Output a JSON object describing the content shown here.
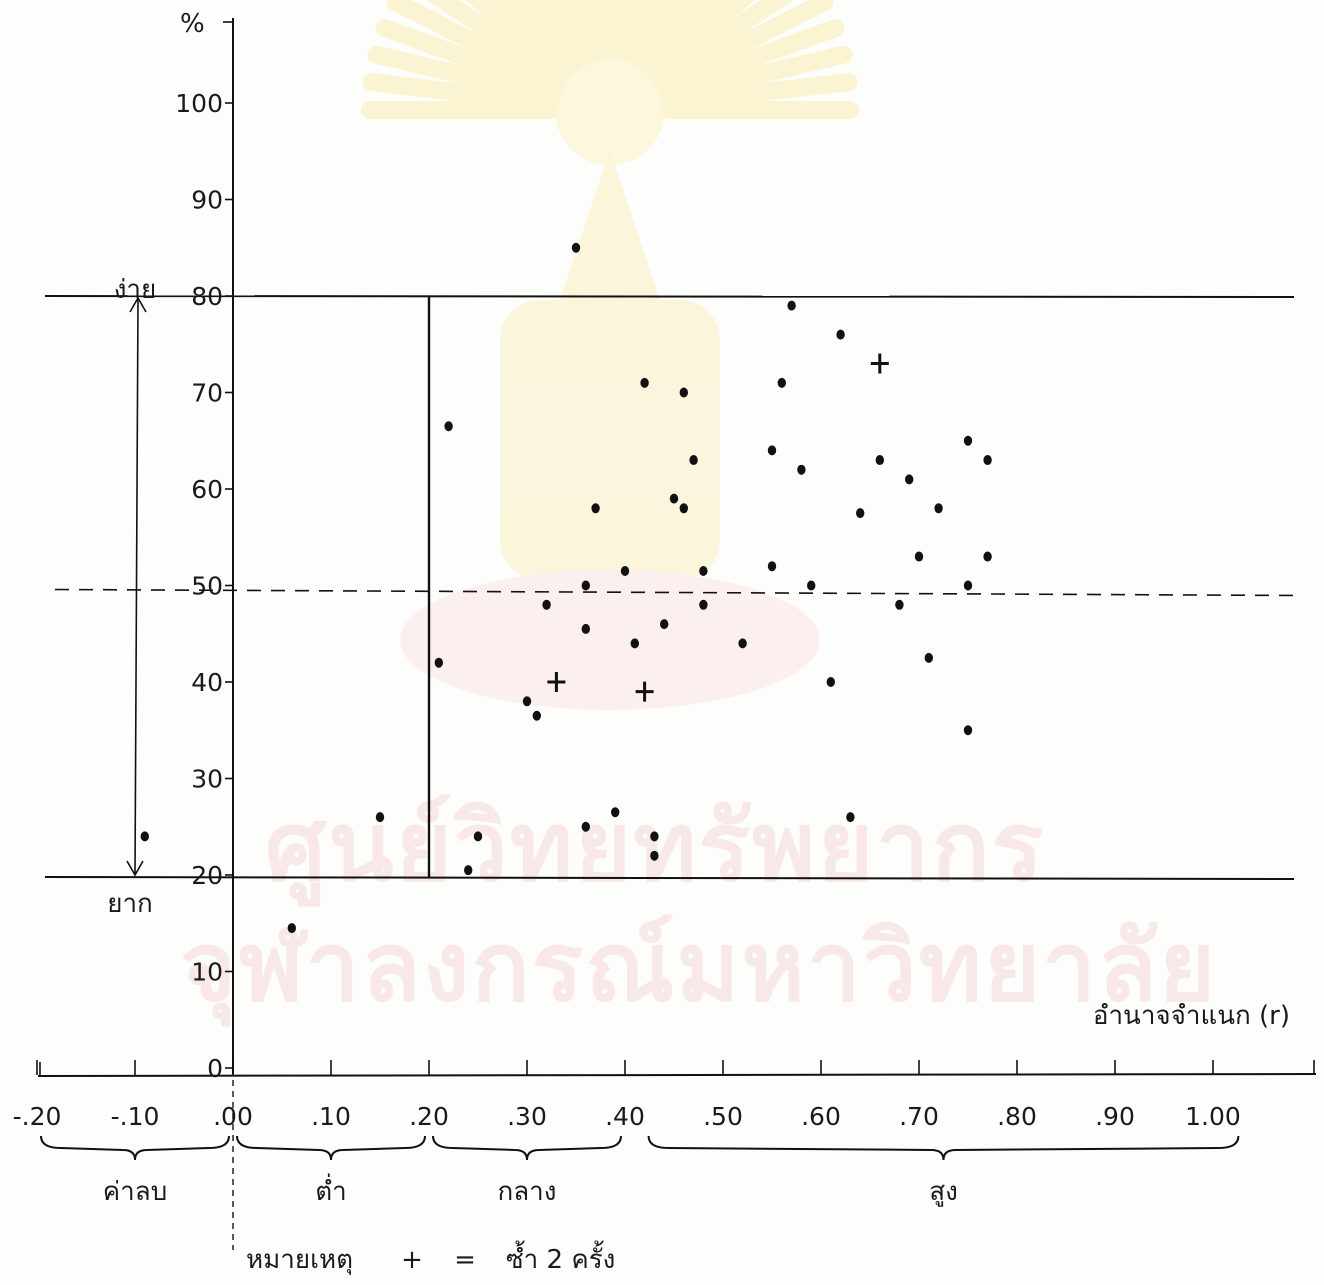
{
  "chart_data": {
    "type": "scatter",
    "y_unit_label": "%",
    "x_axis_label": "อำนาจจำแนก (r)",
    "x_ticks": [
      "-.20",
      "-.10",
      ".00",
      ".10",
      ".20",
      ".30",
      ".40",
      ".50",
      ".60",
      ".70",
      ".80",
      ".90",
      "1.00"
    ],
    "x_tick_values": [
      -0.2,
      -0.1,
      0.0,
      0.1,
      0.2,
      0.3,
      0.4,
      0.5,
      0.6,
      0.7,
      0.8,
      0.9,
      1.0
    ],
    "y_ticks": [
      "0",
      "10",
      "20",
      "30",
      "40",
      "50",
      "60",
      "70",
      "80",
      "90",
      "100"
    ],
    "y_tick_values": [
      0,
      10,
      20,
      30,
      40,
      50,
      60,
      70,
      80,
      90,
      100
    ],
    "xlim": [
      -0.2,
      1.1
    ],
    "ylim": [
      0,
      105
    ],
    "easy_label": "ง่าย",
    "hard_label": "ยาก",
    "reference_lines": {
      "easy_level": 80,
      "hard_level": 20,
      "mid_level": 50,
      "min_discrimination": 0.2
    },
    "groups": [
      {
        "label": "ค่าลบ",
        "from": -0.2,
        "to": 0.0
      },
      {
        "label": "ต่ำ",
        "from": 0.0,
        "to": 0.2
      },
      {
        "label": "กลาง",
        "from": 0.2,
        "to": 0.4
      },
      {
        "label": "สูง",
        "from": 0.42,
        "to": 1.03
      }
    ],
    "note": {
      "title": "หมายเหตุ",
      "symbol": "+",
      "equals": "=",
      "text": "ซ้ำ 2 ครั้ง"
    },
    "points": [
      {
        "x": -0.09,
        "y": 24,
        "mark": "dot"
      },
      {
        "x": 0.06,
        "y": 14.5,
        "mark": "dot"
      },
      {
        "x": 0.15,
        "y": 26,
        "mark": "dot"
      },
      {
        "x": 0.21,
        "y": 42,
        "mark": "dot"
      },
      {
        "x": 0.22,
        "y": 66.5,
        "mark": "dot"
      },
      {
        "x": 0.24,
        "y": 20.5,
        "mark": "dot"
      },
      {
        "x": 0.25,
        "y": 24,
        "mark": "dot"
      },
      {
        "x": 0.3,
        "y": 38,
        "mark": "dot"
      },
      {
        "x": 0.31,
        "y": 36.5,
        "mark": "dot"
      },
      {
        "x": 0.32,
        "y": 48,
        "mark": "dot"
      },
      {
        "x": 0.33,
        "y": 40,
        "mark": "plus"
      },
      {
        "x": 0.35,
        "y": 85,
        "mark": "dot"
      },
      {
        "x": 0.36,
        "y": 50,
        "mark": "dot"
      },
      {
        "x": 0.36,
        "y": 45.5,
        "mark": "dot"
      },
      {
        "x": 0.36,
        "y": 25,
        "mark": "dot"
      },
      {
        "x": 0.37,
        "y": 58,
        "mark": "dot"
      },
      {
        "x": 0.39,
        "y": 26.5,
        "mark": "dot"
      },
      {
        "x": 0.4,
        "y": 51.5,
        "mark": "dot"
      },
      {
        "x": 0.41,
        "y": 44,
        "mark": "dot"
      },
      {
        "x": 0.42,
        "y": 71,
        "mark": "dot"
      },
      {
        "x": 0.42,
        "y": 39,
        "mark": "plus"
      },
      {
        "x": 0.43,
        "y": 24,
        "mark": "dot"
      },
      {
        "x": 0.43,
        "y": 22,
        "mark": "dot"
      },
      {
        "x": 0.44,
        "y": 46,
        "mark": "dot"
      },
      {
        "x": 0.45,
        "y": 59,
        "mark": "dot"
      },
      {
        "x": 0.46,
        "y": 70,
        "mark": "dot"
      },
      {
        "x": 0.46,
        "y": 58,
        "mark": "dot"
      },
      {
        "x": 0.47,
        "y": 63,
        "mark": "dot"
      },
      {
        "x": 0.48,
        "y": 51.5,
        "mark": "dot"
      },
      {
        "x": 0.48,
        "y": 48,
        "mark": "dot"
      },
      {
        "x": 0.52,
        "y": 44,
        "mark": "dot"
      },
      {
        "x": 0.55,
        "y": 64,
        "mark": "dot"
      },
      {
        "x": 0.55,
        "y": 52,
        "mark": "dot"
      },
      {
        "x": 0.56,
        "y": 71,
        "mark": "dot"
      },
      {
        "x": 0.57,
        "y": 79,
        "mark": "dot"
      },
      {
        "x": 0.58,
        "y": 62,
        "mark": "dot"
      },
      {
        "x": 0.59,
        "y": 50,
        "mark": "dot"
      },
      {
        "x": 0.61,
        "y": 40,
        "mark": "dot"
      },
      {
        "x": 0.62,
        "y": 76,
        "mark": "dot"
      },
      {
        "x": 0.63,
        "y": 26,
        "mark": "dot"
      },
      {
        "x": 0.64,
        "y": 57.5,
        "mark": "dot"
      },
      {
        "x": 0.66,
        "y": 73,
        "mark": "plus"
      },
      {
        "x": 0.66,
        "y": 63,
        "mark": "dot"
      },
      {
        "x": 0.68,
        "y": 48,
        "mark": "dot"
      },
      {
        "x": 0.69,
        "y": 61,
        "mark": "dot"
      },
      {
        "x": 0.7,
        "y": 53,
        "mark": "dot"
      },
      {
        "x": 0.71,
        "y": 42.5,
        "mark": "dot"
      },
      {
        "x": 0.72,
        "y": 58,
        "mark": "dot"
      },
      {
        "x": 0.75,
        "y": 65,
        "mark": "dot"
      },
      {
        "x": 0.75,
        "y": 50,
        "mark": "dot"
      },
      {
        "x": 0.75,
        "y": 35,
        "mark": "dot"
      },
      {
        "x": 0.77,
        "y": 63,
        "mark": "dot"
      },
      {
        "x": 0.77,
        "y": 53,
        "mark": "dot"
      }
    ]
  }
}
